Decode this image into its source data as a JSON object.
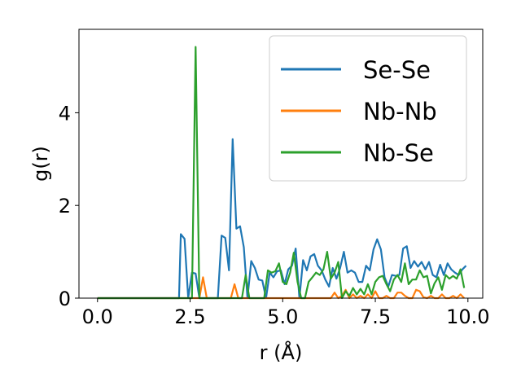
{
  "chart_data": {
    "type": "line",
    "xlabel": "r (Å)",
    "ylabel": "g(r)",
    "xlim": [
      -0.5,
      10.4
    ],
    "ylim": [
      0,
      5.8
    ],
    "xticks": [
      "0.0",
      "2.5",
      "5.0",
      "7.5",
      "10.0"
    ],
    "yticks": [
      "0",
      "2",
      "4"
    ],
    "legend_position": "top-right",
    "grid": false,
    "series": [
      {
        "name": "Se-Se",
        "color": "#1f77b4",
        "x": [
          0.0,
          2.2,
          2.25,
          2.35,
          2.45,
          2.55,
          2.65,
          2.75,
          2.85,
          2.95,
          3.05,
          3.15,
          3.25,
          3.35,
          3.45,
          3.55,
          3.65,
          3.75,
          3.85,
          3.95,
          4.05,
          4.15,
          4.25,
          4.35,
          4.45,
          4.55,
          4.65,
          4.75,
          4.85,
          4.95,
          5.05,
          5.15,
          5.25,
          5.35,
          5.45,
          5.55,
          5.65,
          5.75,
          5.85,
          5.95,
          6.05,
          6.15,
          6.25,
          6.35,
          6.45,
          6.55,
          6.65,
          6.75,
          6.85,
          6.95,
          7.05,
          7.15,
          7.25,
          7.35,
          7.45,
          7.55,
          7.65,
          7.75,
          7.85,
          7.95,
          8.05,
          8.15,
          8.25,
          8.35,
          8.45,
          8.55,
          8.65,
          8.75,
          8.85,
          8.95,
          9.05,
          9.15,
          9.25,
          9.35,
          9.45,
          9.55,
          9.65,
          9.75,
          9.85,
          9.95
        ],
        "y": [
          0.0,
          0.0,
          1.38,
          1.28,
          0.0,
          0.55,
          0.53,
          0.0,
          0.0,
          0.0,
          0.0,
          0.0,
          0.0,
          1.35,
          1.3,
          0.6,
          3.43,
          1.5,
          1.55,
          1.1,
          0.0,
          0.8,
          0.65,
          0.4,
          0.38,
          0.0,
          0.55,
          0.45,
          0.58,
          0.6,
          0.3,
          0.62,
          0.7,
          1.07,
          0.0,
          0.82,
          0.6,
          0.9,
          0.95,
          0.7,
          0.6,
          0.4,
          0.25,
          0.65,
          0.42,
          0.65,
          1.0,
          0.55,
          0.6,
          0.55,
          0.35,
          0.35,
          0.7,
          0.6,
          1.05,
          1.27,
          1.05,
          0.45,
          0.25,
          0.5,
          0.48,
          0.5,
          1.07,
          1.12,
          0.65,
          0.8,
          0.68,
          0.78,
          0.62,
          0.78,
          0.5,
          0.45,
          0.72,
          0.5,
          0.75,
          0.62,
          0.55,
          0.5,
          0.62,
          0.7
        ]
      },
      {
        "name": "Nb-Nb",
        "color": "#ff7f0e",
        "x": [
          0.0,
          2.75,
          2.85,
          2.95,
          3.05,
          3.6,
          3.7,
          3.8,
          3.9,
          4.0,
          6.3,
          6.4,
          6.5,
          6.6,
          6.7,
          6.8,
          6.9,
          7.0,
          7.1,
          7.2,
          7.3,
          7.4,
          7.5,
          7.6,
          7.7,
          7.8,
          7.9,
          8.0,
          8.1,
          8.2,
          8.3,
          8.4,
          8.5,
          8.6,
          8.7,
          8.8,
          8.9,
          9.0,
          9.1,
          9.2,
          9.3,
          9.4,
          9.5,
          9.6,
          9.7,
          9.8,
          9.9
        ],
        "y": [
          0.0,
          0.0,
          0.45,
          0.0,
          0.0,
          0.0,
          0.3,
          0.0,
          0.0,
          0.0,
          0.0,
          0.12,
          0.0,
          0.05,
          0.18,
          0.0,
          0.08,
          0.0,
          0.05,
          0.0,
          0.08,
          0.0,
          0.15,
          0.0,
          0.0,
          0.05,
          0.0,
          0.0,
          0.12,
          0.12,
          0.05,
          0.0,
          0.0,
          0.18,
          0.15,
          0.02,
          0.0,
          0.05,
          0.0,
          0.0,
          0.08,
          0.0,
          0.0,
          0.05,
          0.0,
          0.08,
          0.0
        ]
      },
      {
        "name": "Nb-Se",
        "color": "#2ca02c",
        "x": [
          0.0,
          2.5,
          2.55,
          2.65,
          2.75,
          2.85,
          3.6,
          3.7,
          3.8,
          3.9,
          4.0,
          4.1,
          4.2,
          4.3,
          4.4,
          4.5,
          4.6,
          4.7,
          4.8,
          4.9,
          5.0,
          5.1,
          5.2,
          5.3,
          5.4,
          5.5,
          5.6,
          5.7,
          5.8,
          5.9,
          6.0,
          6.1,
          6.2,
          6.3,
          6.4,
          6.5,
          6.6,
          6.7,
          6.8,
          6.9,
          7.0,
          7.1,
          7.2,
          7.3,
          7.4,
          7.5,
          7.6,
          7.7,
          7.8,
          7.9,
          8.0,
          8.1,
          8.2,
          8.3,
          8.4,
          8.5,
          8.6,
          8.7,
          8.8,
          8.9,
          9.0,
          9.1,
          9.2,
          9.3,
          9.4,
          9.5,
          9.6,
          9.7,
          9.8,
          9.9
        ],
        "y": [
          0.0,
          0.0,
          0.0,
          5.42,
          0.0,
          0.0,
          0.0,
          0.0,
          0.0,
          0.0,
          0.5,
          0.0,
          0.0,
          0.0,
          0.0,
          0.0,
          0.6,
          0.55,
          0.58,
          0.75,
          0.35,
          0.3,
          0.55,
          0.98,
          0.35,
          0.0,
          0.0,
          0.35,
          0.45,
          0.55,
          0.5,
          0.62,
          1.0,
          0.42,
          0.55,
          0.78,
          0.0,
          0.15,
          0.05,
          0.22,
          0.08,
          0.2,
          0.08,
          0.3,
          0.08,
          0.35,
          0.45,
          0.48,
          0.3,
          0.15,
          0.4,
          0.5,
          0.35,
          0.75,
          0.3,
          0.4,
          0.4,
          0.6,
          0.45,
          0.48,
          0.1,
          0.32,
          0.45,
          0.18,
          0.5,
          0.42,
          0.48,
          0.42,
          0.62,
          0.22
        ]
      }
    ]
  }
}
